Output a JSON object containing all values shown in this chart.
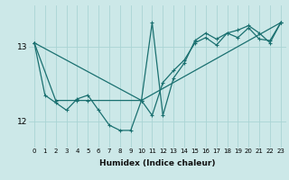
{
  "xlabel": "Humidex (Indice chaleur)",
  "bg_color": "#cce8e8",
  "line_color": "#1a7070",
  "grid_color": "#aad4d4",
  "xlim": [
    -0.5,
    23.5
  ],
  "ylim": [
    11.65,
    13.55
  ],
  "yticks": [
    12,
    13
  ],
  "xticks": [
    0,
    1,
    2,
    3,
    4,
    5,
    6,
    7,
    8,
    9,
    10,
    11,
    12,
    13,
    14,
    15,
    16,
    17,
    18,
    19,
    20,
    21,
    22,
    23
  ],
  "line1_x": [
    0,
    1,
    2,
    3,
    4,
    5,
    6,
    7,
    8,
    9,
    10,
    11,
    12,
    13,
    14,
    15,
    16,
    17,
    18,
    19,
    20,
    21,
    22,
    23
  ],
  "line1_y": [
    13.05,
    12.35,
    12.25,
    12.15,
    12.3,
    12.35,
    12.15,
    11.95,
    11.88,
    11.88,
    12.28,
    12.08,
    12.52,
    12.68,
    12.82,
    13.05,
    13.12,
    13.02,
    13.18,
    13.12,
    13.25,
    13.1,
    13.08,
    13.32
  ],
  "line2_x": [
    0,
    2,
    4,
    5,
    10,
    11,
    12,
    13,
    14,
    15,
    16,
    17,
    18,
    19,
    20,
    21,
    22,
    23
  ],
  "line2_y": [
    13.05,
    12.28,
    12.28,
    12.28,
    12.28,
    13.32,
    12.08,
    12.58,
    12.78,
    13.08,
    13.18,
    13.1,
    13.18,
    13.22,
    13.28,
    13.18,
    13.05,
    13.32
  ],
  "line3_x": [
    0,
    10,
    23
  ],
  "line3_y": [
    13.05,
    12.28,
    13.32
  ]
}
